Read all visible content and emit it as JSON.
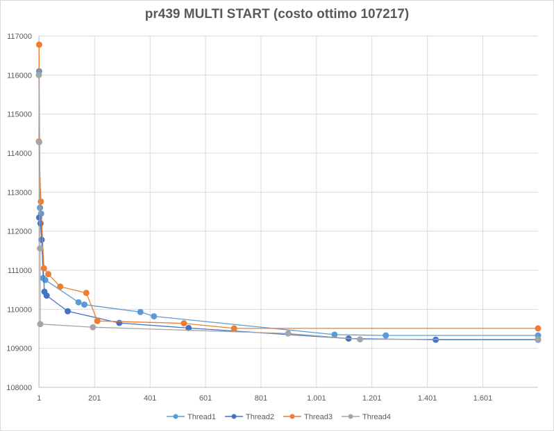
{
  "chart_data": {
    "type": "line",
    "title": "pr439 MULTI START (costo ottimo 107217)",
    "xlabel": "",
    "ylabel": "",
    "xlim": [
      0,
      1800
    ],
    "ylim": [
      108000,
      117000
    ],
    "x_tick_labels": [
      {
        "v": 1,
        "label": "1"
      },
      {
        "v": 201,
        "label": "201"
      },
      {
        "v": 401,
        "label": "401"
      },
      {
        "v": 601,
        "label": "601"
      },
      {
        "v": 801,
        "label": "801"
      },
      {
        "v": 1001,
        "label": "1.001"
      },
      {
        "v": 1201,
        "label": "1.201"
      },
      {
        "v": 1401,
        "label": "1.401"
      },
      {
        "v": 1601,
        "label": "1.601"
      }
    ],
    "y_tick_labels": [
      {
        "v": 108000,
        "label": "108000"
      },
      {
        "v": 109000,
        "label": "109000"
      },
      {
        "v": 110000,
        "label": "110000"
      },
      {
        "v": 111000,
        "label": "111000"
      },
      {
        "v": 112000,
        "label": "112000"
      },
      {
        "v": 113000,
        "label": "113000"
      },
      {
        "v": 114000,
        "label": "114000"
      },
      {
        "v": 115000,
        "label": "115000"
      },
      {
        "v": 116000,
        "label": "116000"
      },
      {
        "v": 117000,
        "label": "117000"
      }
    ],
    "grid": true,
    "legend": "bottom",
    "series": [
      {
        "name": "Thread1",
        "color": "#5b9bd5",
        "points": [
          [
            1,
            116100
          ],
          [
            4,
            112600
          ],
          [
            8,
            112450
          ],
          [
            15,
            110800
          ],
          [
            23,
            110750
          ],
          [
            143,
            110180
          ],
          [
            164,
            110120
          ],
          [
            366,
            109930
          ],
          [
            415,
            109820
          ],
          [
            1066,
            109350
          ],
          [
            1251,
            109330
          ],
          [
            1800,
            109330
          ]
        ]
      },
      {
        "name": "Thread2",
        "color": "#4472c4",
        "points": [
          [
            1,
            112350
          ],
          [
            6,
            112200
          ],
          [
            10,
            111780
          ],
          [
            20,
            110450
          ],
          [
            28,
            110350
          ],
          [
            104,
            109950
          ],
          [
            290,
            109650
          ],
          [
            540,
            109520
          ],
          [
            1117,
            109250
          ],
          [
            1431,
            109220
          ],
          [
            1800,
            109220
          ]
        ]
      },
      {
        "name": "Thread3",
        "color": "#ed7d31",
        "points": [
          [
            1,
            116780
          ],
          [
            0,
            114300
          ],
          [
            7,
            112760
          ],
          [
            18,
            111050
          ],
          [
            34,
            110900
          ],
          [
            77,
            110580
          ],
          [
            171,
            110420
          ],
          [
            211,
            109700
          ],
          [
            523,
            109640
          ],
          [
            704,
            109510
          ],
          [
            1800,
            109510
          ]
        ]
      },
      {
        "name": "Thread4",
        "color": "#a5a5a5",
        "points": [
          [
            0,
            116000
          ],
          [
            1,
            114280
          ],
          [
            4,
            111560
          ],
          [
            5,
            109620
          ],
          [
            195,
            109540
          ],
          [
            899,
            109380
          ],
          [
            1158,
            109230
          ],
          [
            1800,
            109230
          ]
        ]
      }
    ]
  }
}
